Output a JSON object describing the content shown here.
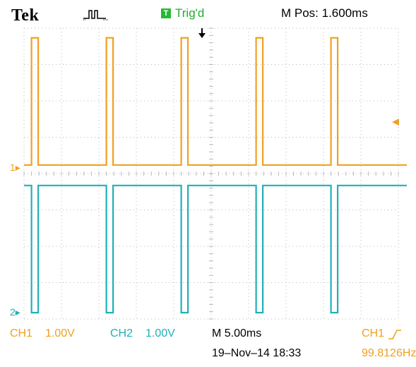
{
  "header": {
    "brand": "Tek",
    "acquisition_icon": "acquisition-pulse-icon",
    "trigger_status_badge": "T",
    "trigger_status": "Trig'd",
    "horizontal_position": "M Pos: 1.600ms"
  },
  "markers": {
    "ch1": "1",
    "ch2": "2"
  },
  "footer": {
    "ch1_label": "CH1",
    "ch1_scale": "1.00V",
    "ch2_label": "CH2",
    "ch2_scale": "1.00V",
    "timebase": "M 5.00ms",
    "date_time": "19–Nov–14 18:33",
    "trigger_source": "CH1",
    "trigger_slope_icon": "rising-edge-icon",
    "trigger_freq": "99.8126Hz"
  },
  "colors": {
    "ch1": "#f0a020",
    "ch2": "#20b0b8",
    "trigger": "#22bb33",
    "grid": "#b8b8b8"
  },
  "waveform": {
    "period_ms": 10,
    "pulse_width_ms": 0.9,
    "pulse_times_ms": [
      1.0,
      11.0,
      21.0,
      31.0,
      41.0
    ],
    "ch1_low_div": 0.1,
    "ch1_high_div": 3.6,
    "ch2_high_div": 3.5,
    "ch2_low_div": 0.0
  }
}
